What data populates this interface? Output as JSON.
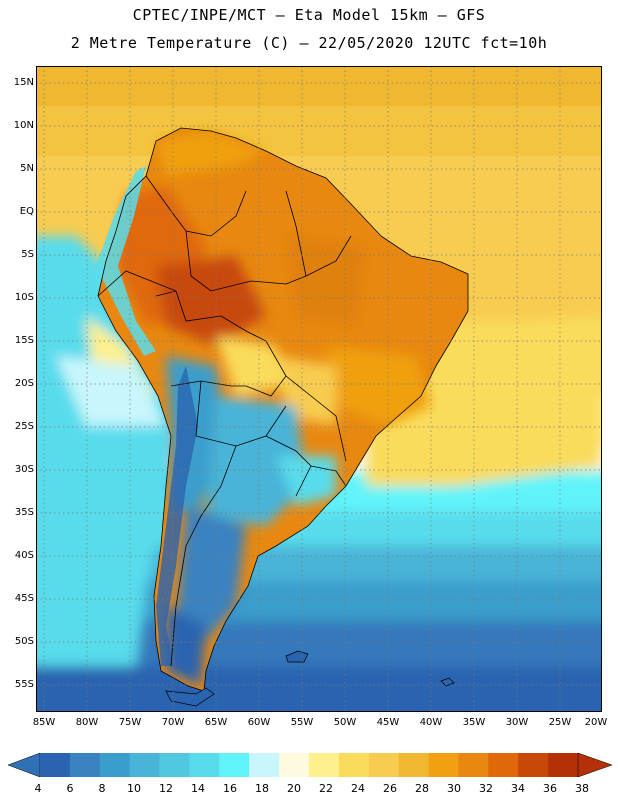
{
  "title_line1": "CPTEC/INPE/MCT –  Eta Model 15km – GFS",
  "title_line2": "2 Metre Temperature (C) – 22/05/2020 12UTC fct=10h",
  "lat_labels": [
    "15N",
    "10N",
    "5N",
    "EQ",
    "5S",
    "10S",
    "15S",
    "20S",
    "25S",
    "30S",
    "35S",
    "40S",
    "45S",
    "50S",
    "55S"
  ],
  "lon_labels": [
    "85W",
    "80W",
    "75W",
    "70W",
    "65W",
    "60W",
    "55W",
    "50W",
    "45W",
    "40W",
    "35W",
    "30W",
    "25W",
    "20W"
  ],
  "colorbar": {
    "values": [
      "4",
      "6",
      "8",
      "10",
      "12",
      "14",
      "16",
      "18",
      "20",
      "22",
      "24",
      "26",
      "28",
      "30",
      "32",
      "34",
      "36",
      "38"
    ],
    "colors": [
      "#2a64b0",
      "#3a82c0",
      "#3a9ecc",
      "#48b4d8",
      "#50c8e0",
      "#58dcec",
      "#60f4fa",
      "#c8f6fc",
      "#fefae0",
      "#fef08c",
      "#fadc5c",
      "#f8cc50",
      "#f0b830",
      "#f0a010",
      "#e88810",
      "#e06808",
      "#c84808",
      "#b43008"
    ]
  },
  "legend": {
    "low_color": "#3070b4",
    "high_color": "#b43008"
  }
}
